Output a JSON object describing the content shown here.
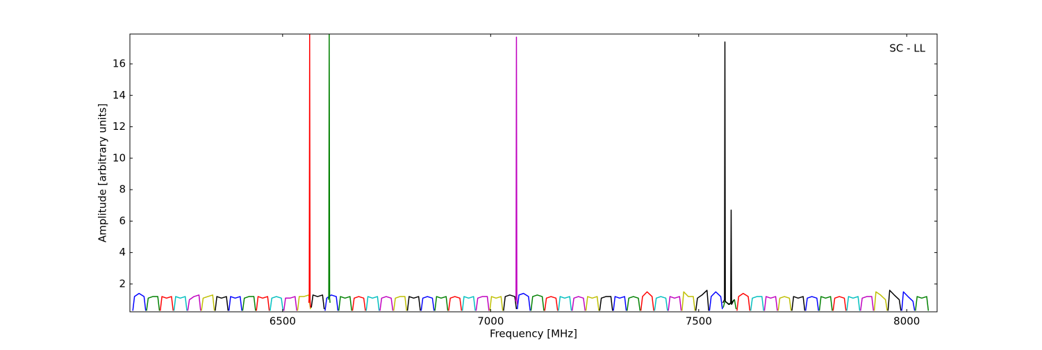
{
  "chart_data": {
    "type": "line",
    "xlabel": "Frequency [MHz]",
    "ylabel": "Amplitude [arbitrary units]",
    "annotation": "SC - LL",
    "xlim": [
      6133,
      8073
    ],
    "ylim": [
      0.23,
      17.9
    ],
    "xticks": [
      6500,
      7000,
      7500,
      8000
    ],
    "yticks": [
      2,
      4,
      6,
      8,
      10,
      12,
      14,
      16
    ],
    "grid": false,
    "series": [
      {
        "color": "#0000ff",
        "x": [
          6140,
          6144,
          6155,
          6167,
          6171
        ],
        "values": [
          0.3,
          1.2,
          1.4,
          1.2,
          0.3
        ]
      },
      {
        "color": "#008000",
        "x": [
          6173,
          6177,
          6188,
          6200,
          6204
        ],
        "values": [
          0.3,
          1.1,
          1.2,
          1.2,
          0.3
        ]
      },
      {
        "color": "#ff0000",
        "x": [
          6206,
          6210,
          6221,
          6233,
          6237
        ],
        "values": [
          0.3,
          1.2,
          1.1,
          1.2,
          0.3
        ]
      },
      {
        "color": "#00bfbf",
        "x": [
          6239,
          6243,
          6254,
          6266,
          6270
        ],
        "values": [
          0.3,
          1.2,
          1.1,
          1.2,
          0.3
        ]
      },
      {
        "color": "#bf00bf",
        "x": [
          6272,
          6276,
          6287,
          6299,
          6303
        ],
        "values": [
          0.3,
          1.0,
          1.2,
          1.3,
          0.3
        ]
      },
      {
        "color": "#bfbf00",
        "x": [
          6305,
          6309,
          6320,
          6332,
          6336
        ],
        "values": [
          0.3,
          1.1,
          1.2,
          1.3,
          0.3
        ]
      },
      {
        "color": "#000000",
        "x": [
          6338,
          6342,
          6353,
          6365,
          6369
        ],
        "values": [
          0.3,
          1.2,
          1.1,
          1.2,
          0.3
        ]
      },
      {
        "color": "#0000ff",
        "x": [
          6371,
          6375,
          6386,
          6398,
          6402
        ],
        "values": [
          0.3,
          1.2,
          1.1,
          1.2,
          0.3
        ]
      },
      {
        "color": "#008000",
        "x": [
          6404,
          6408,
          6419,
          6431,
          6435
        ],
        "values": [
          0.3,
          1.1,
          1.2,
          1.2,
          0.3
        ]
      },
      {
        "color": "#ff0000",
        "x": [
          6437,
          6441,
          6452,
          6464,
          6468
        ],
        "values": [
          0.3,
          1.2,
          1.1,
          1.2,
          0.3
        ]
      },
      {
        "color": "#00bfbf",
        "x": [
          6470,
          6474,
          6485,
          6497,
          6501
        ],
        "values": [
          0.3,
          1.1,
          1.2,
          1.1,
          0.3
        ]
      },
      {
        "color": "#bf00bf",
        "x": [
          6503,
          6507,
          6518,
          6530,
          6534
        ],
        "values": [
          0.3,
          1.1,
          1.1,
          1.2,
          0.3
        ]
      },
      {
        "color": "#bfbf00",
        "x": [
          6536,
          6540,
          6551,
          6563,
          6567
        ],
        "values": [
          0.3,
          1.2,
          1.2,
          1.3,
          0.4
        ]
      },
      {
        "color": "#000000",
        "x": [
          6569,
          6573,
          6584,
          6596,
          6600
        ],
        "values": [
          0.5,
          1.3,
          1.2,
          1.3,
          0.4
        ]
      },
      {
        "color": "#0000ff",
        "x": [
          6602,
          6606,
          6617,
          6629,
          6633
        ],
        "values": [
          0.3,
          1.1,
          1.3,
          1.2,
          0.3
        ]
      },
      {
        "color": "#008000",
        "x": [
          6635,
          6639,
          6650,
          6662,
          6666
        ],
        "values": [
          0.3,
          1.2,
          1.1,
          1.2,
          0.3
        ]
      },
      {
        "color": "#ff0000",
        "x": [
          6668,
          6672,
          6683,
          6695,
          6699
        ],
        "values": [
          0.3,
          1.1,
          1.2,
          1.1,
          0.3
        ]
      },
      {
        "color": "#00bfbf",
        "x": [
          6701,
          6705,
          6716,
          6728,
          6732
        ],
        "values": [
          0.3,
          1.2,
          1.1,
          1.2,
          0.3
        ]
      },
      {
        "color": "#bf00bf",
        "x": [
          6734,
          6738,
          6749,
          6761,
          6765
        ],
        "values": [
          0.3,
          1.1,
          1.2,
          1.1,
          0.3
        ]
      },
      {
        "color": "#bfbf00",
        "x": [
          6767,
          6771,
          6782,
          6794,
          6798
        ],
        "values": [
          0.3,
          1.1,
          1.2,
          1.2,
          0.3
        ]
      },
      {
        "color": "#000000",
        "x": [
          6800,
          6804,
          6815,
          6827,
          6831
        ],
        "values": [
          0.3,
          1.2,
          1.1,
          1.2,
          0.3
        ]
      },
      {
        "color": "#0000ff",
        "x": [
          6833,
          6837,
          6848,
          6860,
          6864
        ],
        "values": [
          0.3,
          1.1,
          1.2,
          1.1,
          0.3
        ]
      },
      {
        "color": "#008000",
        "x": [
          6866,
          6870,
          6881,
          6893,
          6897
        ],
        "values": [
          0.3,
          1.2,
          1.1,
          1.2,
          0.3
        ]
      },
      {
        "color": "#ff0000",
        "x": [
          6899,
          6903,
          6914,
          6926,
          6930
        ],
        "values": [
          0.3,
          1.1,
          1.2,
          1.1,
          0.3
        ]
      },
      {
        "color": "#00bfbf",
        "x": [
          6932,
          6936,
          6947,
          6959,
          6963
        ],
        "values": [
          0.3,
          1.2,
          1.1,
          1.2,
          0.3
        ]
      },
      {
        "color": "#bf00bf",
        "x": [
          6965,
          6969,
          6980,
          6992,
          6996
        ],
        "values": [
          0.3,
          1.1,
          1.2,
          1.2,
          0.3
        ]
      },
      {
        "color": "#bfbf00",
        "x": [
          6998,
          7002,
          7013,
          7025,
          7029
        ],
        "values": [
          0.3,
          1.2,
          1.1,
          1.2,
          0.3
        ]
      },
      {
        "color": "#000000",
        "x": [
          7031,
          7035,
          7046,
          7058,
          7062
        ],
        "values": [
          0.3,
          1.2,
          1.3,
          1.2,
          0.4
        ]
      },
      {
        "color": "#0000ff",
        "x": [
          7064,
          7068,
          7079,
          7091,
          7095
        ],
        "values": [
          0.4,
          1.3,
          1.4,
          1.2,
          0.3
        ]
      },
      {
        "color": "#008000",
        "x": [
          7097,
          7101,
          7112,
          7124,
          7128
        ],
        "values": [
          0.3,
          1.2,
          1.3,
          1.2,
          0.3
        ]
      },
      {
        "color": "#ff0000",
        "x": [
          7130,
          7134,
          7145,
          7157,
          7161
        ],
        "values": [
          0.3,
          1.1,
          1.2,
          1.1,
          0.3
        ]
      },
      {
        "color": "#00bfbf",
        "x": [
          7163,
          7167,
          7178,
          7190,
          7194
        ],
        "values": [
          0.3,
          1.2,
          1.1,
          1.2,
          0.3
        ]
      },
      {
        "color": "#bf00bf",
        "x": [
          7196,
          7200,
          7211,
          7223,
          7227
        ],
        "values": [
          0.3,
          1.1,
          1.2,
          1.1,
          0.3
        ]
      },
      {
        "color": "#bfbf00",
        "x": [
          7229,
          7233,
          7244,
          7256,
          7260
        ],
        "values": [
          0.3,
          1.2,
          1.1,
          1.2,
          0.3
        ]
      },
      {
        "color": "#000000",
        "x": [
          7262,
          7266,
          7277,
          7289,
          7293
        ],
        "values": [
          0.3,
          1.1,
          1.2,
          1.2,
          0.3
        ]
      },
      {
        "color": "#0000ff",
        "x": [
          7295,
          7299,
          7310,
          7322,
          7326
        ],
        "values": [
          0.3,
          1.2,
          1.1,
          1.2,
          0.3
        ]
      },
      {
        "color": "#008000",
        "x": [
          7328,
          7332,
          7343,
          7355,
          7359
        ],
        "values": [
          0.3,
          1.1,
          1.2,
          1.1,
          0.3
        ]
      },
      {
        "color": "#ff0000",
        "x": [
          7361,
          7365,
          7376,
          7388,
          7392
        ],
        "values": [
          0.3,
          1.2,
          1.5,
          1.2,
          0.3
        ]
      },
      {
        "color": "#00bfbf",
        "x": [
          7394,
          7398,
          7409,
          7421,
          7425
        ],
        "values": [
          0.3,
          1.1,
          1.2,
          1.1,
          0.3
        ]
      },
      {
        "color": "#bf00bf",
        "x": [
          7427,
          7431,
          7442,
          7454,
          7458
        ],
        "values": [
          0.3,
          1.2,
          1.1,
          1.2,
          0.3
        ]
      },
      {
        "color": "#bfbf00",
        "x": [
          7460,
          7464,
          7475,
          7487,
          7491
        ],
        "values": [
          0.3,
          1.5,
          1.2,
          1.2,
          0.3
        ]
      },
      {
        "color": "#000000",
        "x": [
          7493,
          7497,
          7508,
          7520,
          7524
        ],
        "values": [
          0.3,
          1.1,
          1.3,
          1.6,
          0.3
        ]
      },
      {
        "color": "#0000ff",
        "x": [
          7526,
          7530,
          7541,
          7553,
          7557
        ],
        "values": [
          0.3,
          1.2,
          1.5,
          1.2,
          0.4
        ]
      },
      {
        "color": "#008000",
        "x": [
          7559,
          7563,
          7574,
          7586,
          7590
        ],
        "values": [
          0.5,
          0.9,
          0.7,
          1.0,
          0.4
        ]
      },
      {
        "color": "#ff0000",
        "x": [
          7592,
          7596,
          7607,
          7619,
          7623
        ],
        "values": [
          0.3,
          1.2,
          1.4,
          1.2,
          0.3
        ]
      },
      {
        "color": "#00bfbf",
        "x": [
          7625,
          7629,
          7640,
          7652,
          7656
        ],
        "values": [
          0.3,
          1.1,
          1.2,
          1.2,
          0.3
        ]
      },
      {
        "color": "#bf00bf",
        "x": [
          7658,
          7662,
          7673,
          7685,
          7689
        ],
        "values": [
          0.3,
          1.2,
          1.1,
          1.2,
          0.3
        ]
      },
      {
        "color": "#bfbf00",
        "x": [
          7691,
          7695,
          7706,
          7718,
          7722
        ],
        "values": [
          0.3,
          1.1,
          1.2,
          1.1,
          0.3
        ]
      },
      {
        "color": "#000000",
        "x": [
          7724,
          7728,
          7739,
          7751,
          7755
        ],
        "values": [
          0.3,
          1.2,
          1.1,
          1.2,
          0.3
        ]
      },
      {
        "color": "#0000ff",
        "x": [
          7757,
          7761,
          7772,
          7784,
          7788
        ],
        "values": [
          0.3,
          1.1,
          1.2,
          1.1,
          0.3
        ]
      },
      {
        "color": "#008000",
        "x": [
          7790,
          7794,
          7805,
          7817,
          7821
        ],
        "values": [
          0.3,
          1.2,
          1.1,
          1.2,
          0.3
        ]
      },
      {
        "color": "#ff0000",
        "x": [
          7823,
          7827,
          7838,
          7850,
          7854
        ],
        "values": [
          0.3,
          1.1,
          1.2,
          1.1,
          0.3
        ]
      },
      {
        "color": "#00bfbf",
        "x": [
          7856,
          7860,
          7871,
          7883,
          7887
        ],
        "values": [
          0.3,
          1.2,
          1.1,
          1.2,
          0.3
        ]
      },
      {
        "color": "#bf00bf",
        "x": [
          7889,
          7893,
          7904,
          7916,
          7920
        ],
        "values": [
          0.3,
          1.1,
          1.2,
          1.2,
          0.3
        ]
      },
      {
        "color": "#bfbf00",
        "x": [
          7922,
          7926,
          7937,
          7949,
          7953
        ],
        "values": [
          0.3,
          1.5,
          1.3,
          1.0,
          0.3
        ]
      },
      {
        "color": "#000000",
        "x": [
          7955,
          7959,
          7970,
          7982,
          7986
        ],
        "values": [
          0.3,
          1.6,
          1.3,
          1.0,
          0.3
        ]
      },
      {
        "color": "#0000ff",
        "x": [
          7988,
          7992,
          8003,
          8015,
          8019
        ],
        "values": [
          0.3,
          1.5,
          1.2,
          0.9,
          0.3
        ]
      },
      {
        "color": "#008000",
        "x": [
          8021,
          8025,
          8036,
          8048,
          8052
        ],
        "values": [
          0.3,
          1.2,
          1.1,
          1.2,
          0.3
        ]
      },
      {
        "color": "#ff0000",
        "x": [
          6563,
          6564,
          6565,
          6566,
          6567
        ],
        "values": [
          0.8,
          1.2,
          17.9,
          1.0,
          0.5
        ]
      },
      {
        "color": "#008000",
        "x": [
          6610,
          6611,
          6612,
          6613,
          6614
        ],
        "values": [
          1.0,
          1.2,
          17.9,
          1.1,
          0.8
        ]
      },
      {
        "color": "#bf00bf",
        "x": [
          7060,
          7061,
          7062,
          7063,
          7064
        ],
        "values": [
          0.9,
          1.2,
          17.7,
          1.0,
          0.7
        ]
      },
      {
        "color": "#000000",
        "x": [
          7558,
          7562,
          7563,
          7564,
          7572,
          7577,
          7578,
          7579,
          7585
        ],
        "values": [
          0.8,
          1.0,
          17.4,
          0.9,
          0.7,
          0.8,
          6.7,
          0.7,
          1.0
        ]
      }
    ]
  }
}
